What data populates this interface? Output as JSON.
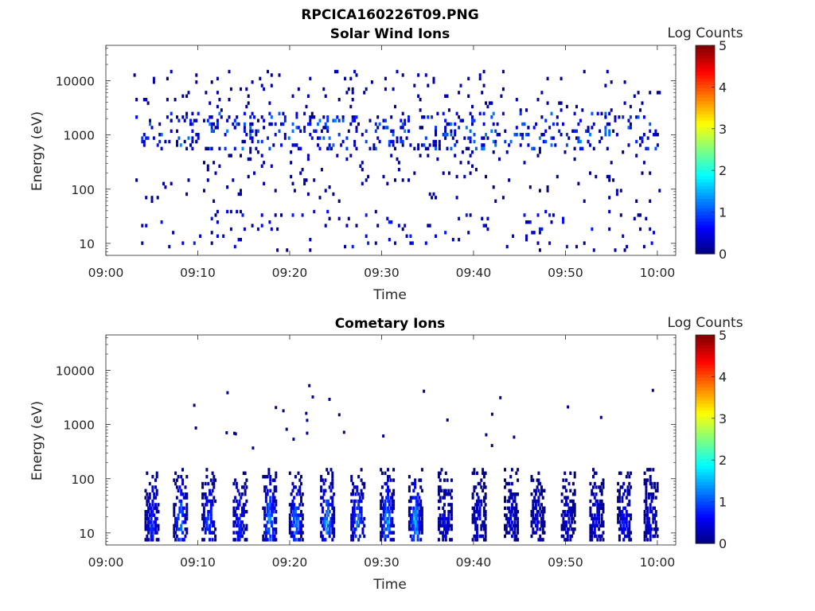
{
  "figure_title": "RPCICA160226T09.PNG",
  "chart_data": [
    {
      "type": "heatmap",
      "title": "Solar Wind Ions",
      "xlabel": "Time",
      "ylabel": "Energy (eV)",
      "x_range": [
        "09:00",
        "10:02"
      ],
      "x_ticks": [
        "09:00",
        "09:10",
        "09:20",
        "09:30",
        "09:40",
        "09:50",
        "10:00"
      ],
      "y_scale": "log",
      "y_range": [
        6,
        45000
      ],
      "y_ticks": [
        "10",
        "100",
        "1000",
        "10000"
      ],
      "colorbar_label": "Log Counts",
      "colorbar_ticks": [
        "0",
        "1",
        "2",
        "3",
        "4",
        "5"
      ],
      "colorbar_range": [
        0,
        5
      ],
      "colormap": "jet",
      "bands": [
        {
          "energy_range": [
            600,
            2500
          ],
          "log_counts": [
            0,
            1.3
          ],
          "description_values": "persistent band"
        },
        {
          "energy_range": [
            7,
            40
          ],
          "log_counts": [
            0,
            0.8
          ]
        },
        {
          "energy_range": [
            60,
            15000
          ],
          "log_counts": [
            0,
            0.3
          ]
        }
      ]
    },
    {
      "type": "heatmap",
      "title": "Cometary Ions",
      "xlabel": "Time",
      "ylabel": "Energy (eV)",
      "x_range": [
        "09:00",
        "10:02"
      ],
      "x_ticks": [
        "09:00",
        "09:10",
        "09:20",
        "09:30",
        "09:40",
        "09:50",
        "10:00"
      ],
      "y_scale": "log",
      "y_range": [
        6,
        45000
      ],
      "y_ticks": [
        "10",
        "100",
        "1000",
        "10000"
      ],
      "colorbar_label": "Log Counts",
      "colorbar_ticks": [
        "0",
        "1",
        "2",
        "3",
        "4",
        "5"
      ],
      "colorbar_range": [
        0,
        5
      ],
      "colormap": "jet",
      "bursts_minutes": [
        4.9,
        8.0,
        11.1,
        14.5,
        17.7,
        20.6,
        24.0,
        27.3,
        30.5,
        33.6,
        36.8,
        40.5,
        44.0,
        46.9,
        50.2,
        53.3,
        56.3,
        59.2
      ],
      "bursts_peak_log_counts": [
        1.2,
        1.8,
        1.5,
        1.2,
        2.0,
        1.8,
        2.1,
        1.8,
        2.0,
        2.0,
        0.8,
        0.7,
        0.6,
        0.7,
        0.6,
        0.8,
        0.9,
        0.7
      ],
      "burst_energy_range": [
        7,
        150
      ]
    }
  ]
}
